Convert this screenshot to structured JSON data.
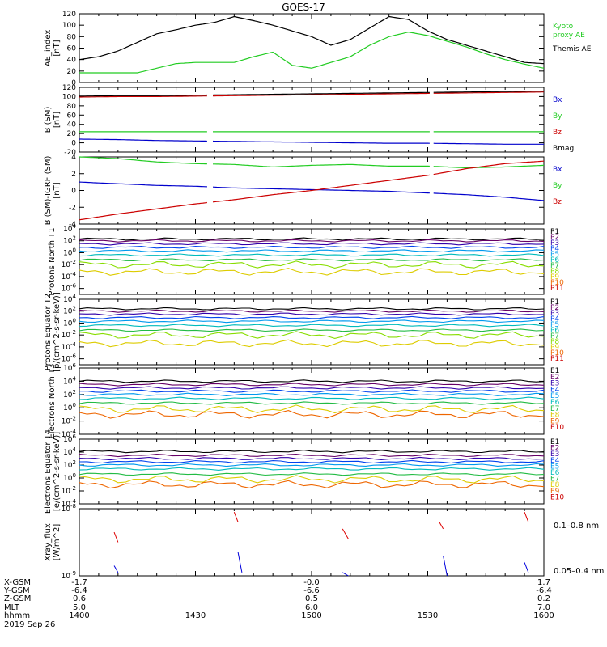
{
  "title": "GOES-17",
  "date_label": "2019 Sep 26",
  "colors": {
    "kyoto": "#22cc22",
    "themis": "#000000",
    "bx": "#0000cc",
    "by": "#22cc22",
    "bz": "#cc0000",
    "xray_long": "#dd0000",
    "xray_short": "#0000dd"
  },
  "row_labels": [
    "X-GSM",
    "Y-GSM",
    "Z-GSM",
    "MLT",
    "hhmm"
  ],
  "row_values": [
    [
      "-1.7",
      "-0.0",
      "1.7"
    ],
    [
      "-6.4",
      "-6.6",
      "-6.4"
    ],
    [
      "0.6",
      "0.5",
      "0.2"
    ],
    [
      "5.0",
      "6.0",
      "7.0"
    ],
    [
      "1400",
      "1430",
      "1500",
      "1530",
      "1600"
    ]
  ],
  "chart_data": [
    {
      "type": "line",
      "ylabel": "AE_index [nT]",
      "ylim": [
        0,
        120
      ],
      "yticks": [
        "0",
        "20",
        "40",
        "60",
        "80",
        "100",
        "120"
      ],
      "x": [
        0,
        5,
        10,
        15,
        20,
        25,
        30,
        35,
        40,
        45,
        50,
        55,
        60,
        65,
        70,
        75,
        80,
        85,
        90,
        95,
        100,
        105,
        110,
        115,
        120
      ],
      "series": [
        {
          "name": "Kyoto proxy AE",
          "legend_lines": [
            "Kyoto",
            "proxy AE"
          ],
          "color_key": "kyoto",
          "values": [
            17,
            17,
            17,
            17,
            25,
            33,
            35,
            35,
            35,
            45,
            53,
            30,
            25,
            35,
            45,
            65,
            80,
            88,
            82,
            72,
            62,
            50,
            40,
            32,
            25
          ]
        },
        {
          "name": "Themis AE",
          "legend_lines": [
            "Themis AE"
          ],
          "color_key": "themis",
          "values": [
            40,
            45,
            55,
            70,
            85,
            92,
            100,
            105,
            115,
            108,
            100,
            90,
            80,
            65,
            75,
            95,
            115,
            110,
            90,
            75,
            65,
            55,
            45,
            35,
            33
          ]
        }
      ]
    },
    {
      "type": "line",
      "ylabel": "B (SM) [nT]",
      "ylim": [
        -20,
        120
      ],
      "yticks": [
        "-20",
        "0",
        "20",
        "40",
        "60",
        "80",
        "100",
        "120"
      ],
      "gaps": [
        [
          33,
          34.5
        ],
        [
          90.5,
          91.5
        ]
      ],
      "x": [
        0,
        10,
        20,
        30,
        40,
        50,
        60,
        70,
        80,
        90,
        100,
        110,
        120
      ],
      "series": [
        {
          "name": "Bx",
          "legend_lines": [
            "Bx"
          ],
          "color_key": "bx",
          "values": [
            8,
            7,
            5,
            4,
            3,
            2,
            1,
            0,
            -1,
            -1,
            -2,
            -3,
            -3
          ]
        },
        {
          "name": "By",
          "legend_lines": [
            "By"
          ],
          "color_key": "by",
          "values": [
            24,
            24,
            24,
            24,
            24,
            24,
            24,
            24,
            24,
            24,
            24,
            24,
            24
          ]
        },
        {
          "name": "Bz",
          "legend_lines": [
            "Bz"
          ],
          "color_key": "bz",
          "values": [
            99,
            100,
            100,
            101,
            102,
            103,
            104,
            105,
            106,
            107,
            108,
            109,
            110
          ]
        },
        {
          "name": "Bmag",
          "legend_lines": [
            "Bmag"
          ],
          "color_key": "themis",
          "values": [
            101,
            102,
            102,
            103,
            104,
            105,
            106,
            107,
            108,
            109,
            110,
            111,
            112
          ]
        }
      ]
    },
    {
      "type": "line",
      "ylabel": "B (SM)-IGRF (SM) [nT]",
      "ylim": [
        -4,
        4
      ],
      "yticks": [
        "-4",
        "-2",
        "0",
        "2",
        "4"
      ],
      "gaps": [
        [
          33,
          34.5
        ],
        [
          90.5,
          91.5
        ]
      ],
      "x": [
        0,
        10,
        20,
        30,
        40,
        50,
        60,
        70,
        80,
        90,
        100,
        110,
        120
      ],
      "series": [
        {
          "name": "Bx",
          "legend_lines": [
            "Bx"
          ],
          "color_key": "bx",
          "values": [
            1.0,
            0.8,
            0.6,
            0.5,
            0.3,
            0.2,
            0.1,
            0.0,
            -0.1,
            -0.3,
            -0.5,
            -0.8,
            -1.2
          ]
        },
        {
          "name": "By",
          "legend_lines": [
            "By"
          ],
          "color_key": "by",
          "values": [
            4.0,
            3.8,
            3.4,
            3.2,
            3.1,
            2.8,
            3.0,
            3.1,
            2.9,
            2.9,
            2.7,
            2.8,
            3.0
          ]
        },
        {
          "name": "Bz",
          "legend_lines": [
            "Bz"
          ],
          "color_key": "bz",
          "values": [
            -3.5,
            -2.8,
            -2.2,
            -1.6,
            -1.1,
            -0.5,
            0.0,
            0.6,
            1.2,
            1.8,
            2.6,
            3.2,
            3.5
          ]
        }
      ]
    },
    {
      "type": "line",
      "ylabel": "Protons North T1",
      "yscale": "log",
      "ylim_exp": [
        -7,
        4
      ],
      "yticks": [
        "10^-6",
        "10^-4",
        "10^-2",
        "10^0",
        "10^2",
        "10^4"
      ],
      "channels": [
        "P1",
        "P2",
        "P3",
        "P4",
        "P5",
        "P6",
        "P7",
        "P8",
        "P9",
        "P10",
        "P11"
      ],
      "channel_colors": [
        "#000000",
        "#660066",
        "#3300aa",
        "#0044ee",
        "#0099ee",
        "#00bbbb",
        "#22bb44",
        "#88dd00",
        "#ddcc00",
        "#ee6600",
        "#cc0000"
      ],
      "levels_exp": [
        2.3,
        2.0,
        1.5,
        0.9,
        0.3,
        -0.4,
        -1.2,
        -2.0,
        -3.2,
        -99,
        -99
      ]
    },
    {
      "type": "line",
      "ylabel": "Protons Equator T2 [p/(cm^2-s-sr-keV)]",
      "yscale": "log",
      "ylim_exp": [
        -7,
        4
      ],
      "yticks": [
        "10^-6",
        "10^-4",
        "10^-2",
        "10^0",
        "10^2",
        "10^4"
      ],
      "channels": [
        "P1",
        "P2",
        "P3",
        "P4",
        "P5",
        "P6",
        "P7",
        "P8",
        "P9",
        "P10",
        "P11"
      ],
      "channel_colors": [
        "#000000",
        "#660066",
        "#3300aa",
        "#0044ee",
        "#0099ee",
        "#00bbbb",
        "#22bb44",
        "#88dd00",
        "#ddcc00",
        "#ee6600",
        "#cc0000"
      ],
      "levels_exp": [
        2.4,
        2.0,
        1.5,
        0.9,
        0.3,
        -0.4,
        -1.2,
        -2.0,
        -3.4,
        -99,
        -99
      ]
    },
    {
      "type": "line",
      "ylabel": "Electrons North T3",
      "yscale": "log",
      "ylim_exp": [
        -4,
        6
      ],
      "yticks": [
        "10^-4",
        "10^-2",
        "10^0",
        "10^2",
        "10^4",
        "10^6"
      ],
      "channels": [
        "E1",
        "E2",
        "E3",
        "E4",
        "E5",
        "E6",
        "E7",
        "E8",
        "E9",
        "E10"
      ],
      "channel_colors": [
        "#000000",
        "#660066",
        "#3300aa",
        "#0044ee",
        "#0099ee",
        "#00bbbb",
        "#22bb44",
        "#ddcc00",
        "#ee6600",
        "#cc0000"
      ],
      "levels_exp": [
        4.0,
        3.5,
        3.0,
        2.5,
        2.0,
        1.4,
        0.7,
        -0.2,
        -1.0,
        -99
      ]
    },
    {
      "type": "line",
      "ylabel": "Electrons Equator T4 [e/(cm^2-s-sr-keV)]",
      "yscale": "log",
      "ylim_exp": [
        -4,
        6
      ],
      "yticks": [
        "10^-4",
        "10^-2",
        "10^0",
        "10^2",
        "10^4",
        "10^6"
      ],
      "channels": [
        "E1",
        "E2",
        "E3",
        "E4",
        "E5",
        "E6",
        "E7",
        "E8",
        "E9",
        "E10"
      ],
      "channel_colors": [
        "#000000",
        "#660066",
        "#3300aa",
        "#0044ee",
        "#0099ee",
        "#00bbbb",
        "#22bb44",
        "#ddcc00",
        "#ee6600",
        "#cc0000"
      ],
      "levels_exp": [
        4.1,
        3.5,
        3.0,
        2.5,
        2.0,
        1.4,
        0.6,
        -0.2,
        -1.0,
        -99
      ]
    },
    {
      "type": "line",
      "ylabel": "Xray_flux [W/m^2]",
      "yscale": "log",
      "ylim_exp": [
        -9,
        -8
      ],
      "yticks": [
        "10^-9",
        "10^-8"
      ],
      "series": [
        {
          "name": "0.1-0.8 nm",
          "legend_lines": [
            "0.1–0.8 nm"
          ],
          "color_key": "xray_long"
        },
        {
          "name": "0.05-0.4 nm",
          "legend_lines": [
            "0.05–0.4 nm"
          ],
          "color_key": "xray_short"
        }
      ]
    }
  ]
}
